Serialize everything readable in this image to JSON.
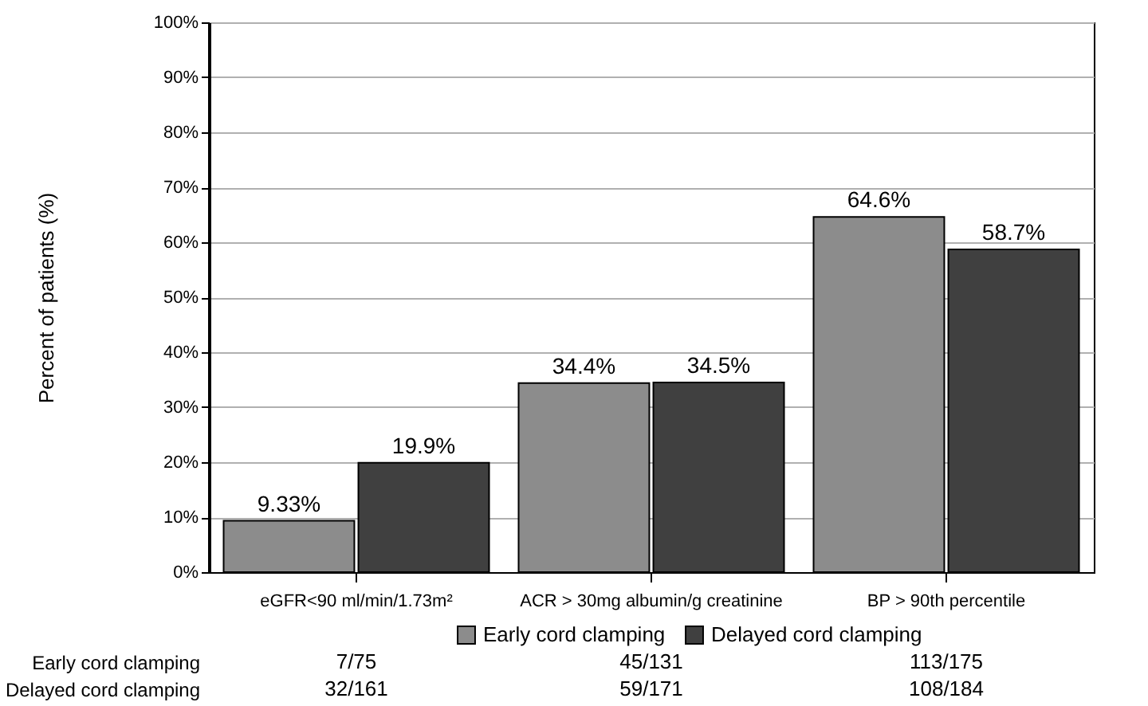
{
  "chart_data": {
    "type": "bar",
    "ylabel": "Percent of patients (%)",
    "categories": [
      "eGFR<90 ml/min/1.73m²",
      "ACR > 30mg albumin/g creatinine",
      "BP > 90th percentile"
    ],
    "series": [
      {
        "name": "Early cord clamping",
        "color": "#8c8c8c",
        "values": [
          9.33,
          34.4,
          64.6
        ],
        "value_labels": [
          "9.33%",
          "34.4%",
          "64.6%"
        ]
      },
      {
        "name": "Delayed cord clamping",
        "color": "#404040",
        "values": [
          19.9,
          34.5,
          58.7
        ],
        "value_labels": [
          "19.9%",
          "34.5%",
          "58.7%"
        ]
      }
    ],
    "ylim": [
      0,
      100
    ],
    "yticks": [
      {
        "value": 0,
        "label": "0%"
      },
      {
        "value": 10,
        "label": "10%"
      },
      {
        "value": 20,
        "label": "20%"
      },
      {
        "value": 30,
        "label": "30%"
      },
      {
        "value": 40,
        "label": "40%"
      },
      {
        "value": 50,
        "label": "50%"
      },
      {
        "value": 60,
        "label": "60%"
      },
      {
        "value": 70,
        "label": "70%"
      },
      {
        "value": 80,
        "label": "80%"
      },
      {
        "value": 90,
        "label": "90%"
      },
      {
        "value": 100,
        "label": "100%"
      }
    ],
    "grid": "y",
    "legend": "bottom",
    "annotations": [
      "Early cord clamping",
      "7/75",
      "45/131",
      "113/175",
      "Delayed cord clamping",
      "32/161",
      "59/171",
      "108/184"
    ]
  }
}
